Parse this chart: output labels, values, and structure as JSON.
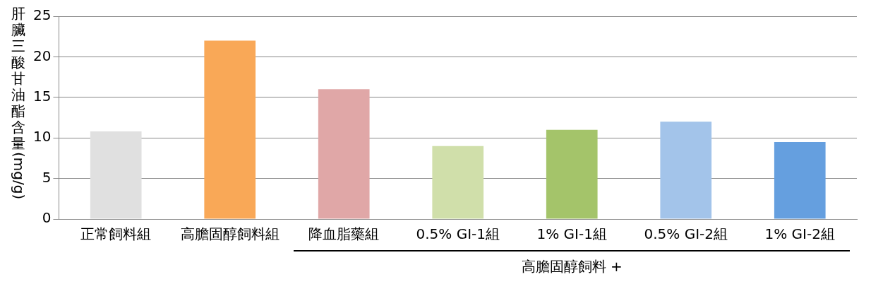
{
  "chart_data": {
    "type": "bar",
    "ylabel": "肝臟三酸甘油酯含量(mg/g)",
    "categories": [
      "正常飼料組",
      "高膽固醇飼料組",
      "降血脂藥組",
      "0.5% GI-1組",
      "1% GI-1組",
      "0.5% GI-2組",
      "1% GI-2組"
    ],
    "values": [
      10.8,
      22,
      16,
      9,
      11,
      12,
      9.5
    ],
    "colors": [
      "#e0e0e0",
      "#f9a857",
      "#e0a7a7",
      "#d0dfaa",
      "#a4c46a",
      "#a3c4ea",
      "#659fdf"
    ],
    "ylim": [
      0,
      25
    ],
    "yticks": [
      0,
      5,
      10,
      15,
      20,
      25
    ],
    "grid": "y",
    "legend": false,
    "annotations": [
      "高膽固醇飼料 +"
    ]
  }
}
